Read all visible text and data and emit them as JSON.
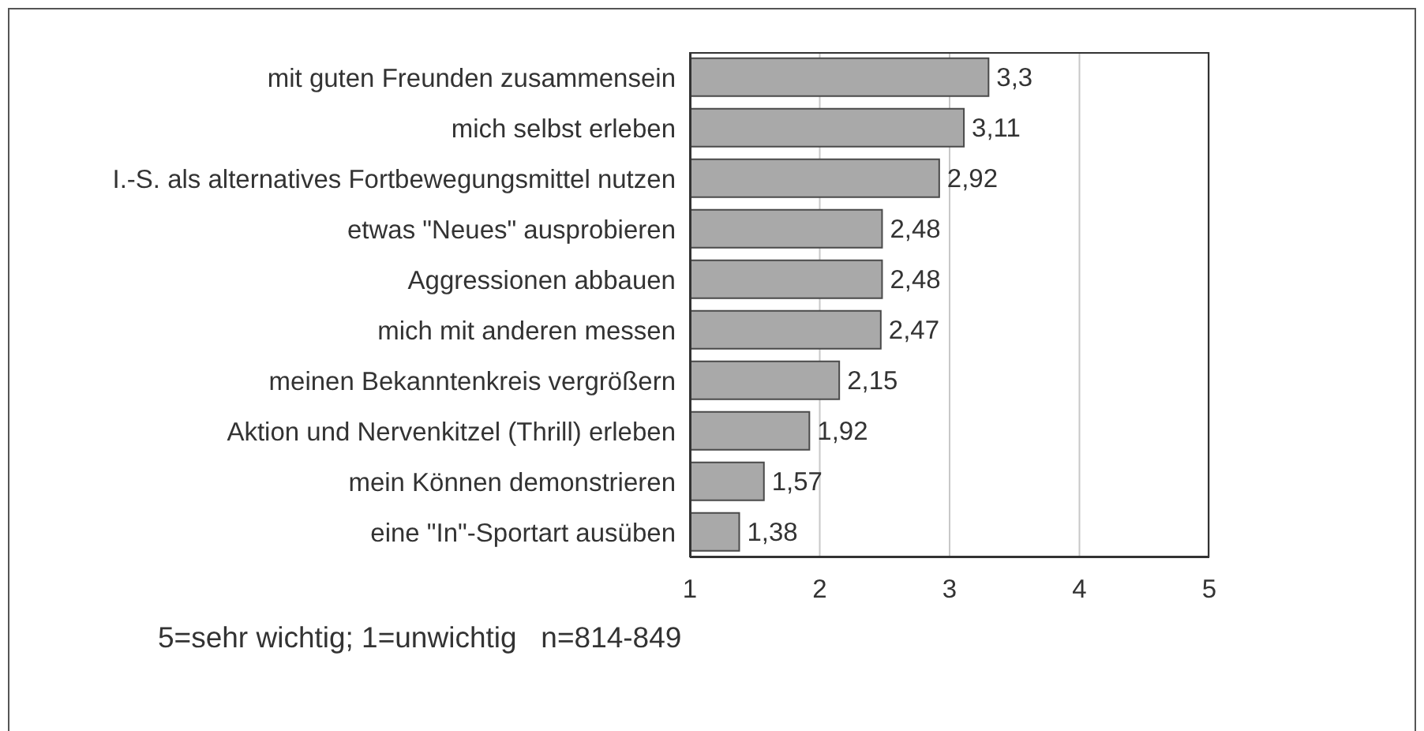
{
  "chart_data": {
    "type": "bar",
    "orientation": "horizontal",
    "categories": [
      "mit guten Freunden zusammensein",
      "mich selbst erleben",
      "I.-S. als alternatives Fortbewegungsmittel nutzen",
      "etwas \"Neues\" ausprobieren",
      "Aggressionen abbauen",
      "mich mit anderen messen",
      "meinen Bekanntenkreis vergrößern",
      "Aktion und Nervenkitzel (Thrill) erleben",
      "mein Können demonstrieren",
      "eine \"In\"-Sportart ausüben"
    ],
    "values": [
      3.3,
      3.11,
      2.92,
      2.48,
      2.48,
      2.47,
      2.15,
      1.92,
      1.57,
      1.38
    ],
    "value_labels": [
      "3,3",
      "3,11",
      "2,92",
      "2,48",
      "2,48",
      "2,47",
      "2,15",
      "1,92",
      "1,57",
      "1,38"
    ],
    "color": "#a9a9a9",
    "xlim": [
      1,
      5
    ],
    "xticks": [
      1,
      2,
      3,
      4,
      5
    ],
    "grid": "x",
    "annotations": [
      "5=sehr wichtig; 1=unwichtig   n=814-849"
    ]
  }
}
